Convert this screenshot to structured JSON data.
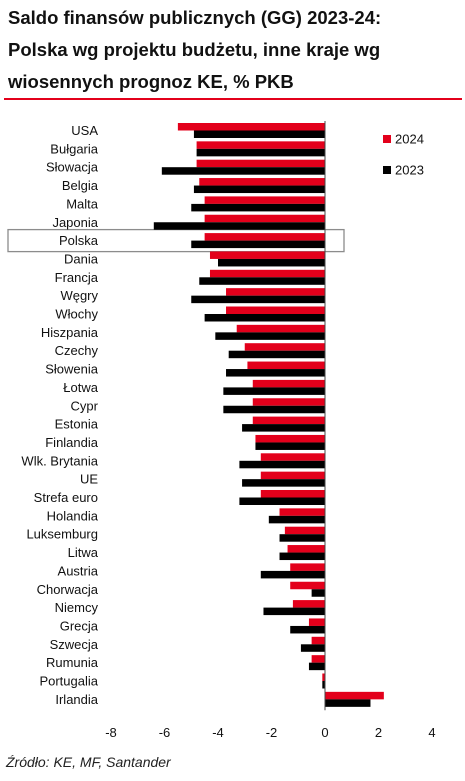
{
  "title": [
    "Saldo finansów publicznych (GG) 2023-24:",
    "Polska wg projektu budżetu, inne kraje wg",
    "wiosennych prognoz KE, % PKB"
  ],
  "source": "Źródło: KE, MF, Santander",
  "colors": {
    "s2024": "#e3001b",
    "s2023": "#000000",
    "rule": "#e3001b",
    "highlight": "#8c8c8c"
  },
  "chart_data": {
    "type": "bar",
    "orientation": "horizontal",
    "highlight_category": "Polska",
    "categories": [
      "USA",
      "Bułgaria",
      "Słowacja",
      "Belgia",
      "Malta",
      "Japonia",
      "Polska",
      "Dania",
      "Francja",
      "Węgry",
      "Włochy",
      "Hiszpania",
      "Czechy",
      "Słowenia",
      "Łotwa",
      "Cypr",
      "Estonia",
      "Finlandia",
      "Wlk. Brytania",
      "UE",
      "Strefa euro",
      "Holandia",
      "Luksemburg",
      "Litwa",
      "Austria",
      "Chorwacja",
      "Niemcy",
      "Grecja",
      "Szwecja",
      "Rumunia",
      "Portugalia",
      "Irlandia"
    ],
    "series": [
      {
        "name": "2024",
        "values": [
          -5.5,
          -4.8,
          -4.8,
          -4.7,
          -4.5,
          -4.5,
          -4.5,
          -4.3,
          -4.3,
          -3.7,
          -3.7,
          -3.3,
          -3.0,
          -2.9,
          -2.7,
          -2.7,
          -2.7,
          -2.6,
          -2.4,
          -2.4,
          -2.4,
          -1.7,
          -1.5,
          -1.4,
          -1.3,
          -1.3,
          -1.2,
          -0.6,
          -0.5,
          -0.5,
          -0.1,
          2.2
        ]
      },
      {
        "name": "2023",
        "values": [
          -4.9,
          -4.8,
          -6.1,
          -4.9,
          -5.0,
          -6.4,
          -5.0,
          -4.0,
          -4.7,
          -5.0,
          -4.5,
          -4.1,
          -3.6,
          -3.7,
          -3.8,
          -3.8,
          -3.1,
          -2.6,
          -3.2,
          -3.1,
          -3.2,
          -2.1,
          -1.7,
          -1.7,
          -2.4,
          -0.5,
          -2.3,
          -1.3,
          -0.9,
          -0.6,
          -0.1,
          1.7
        ]
      }
    ],
    "xlim": [
      -8,
      4
    ],
    "xticks": [
      "-8",
      "-6",
      "-4",
      "-2",
      "0",
      "2",
      "4"
    ],
    "legend": "top-right"
  }
}
